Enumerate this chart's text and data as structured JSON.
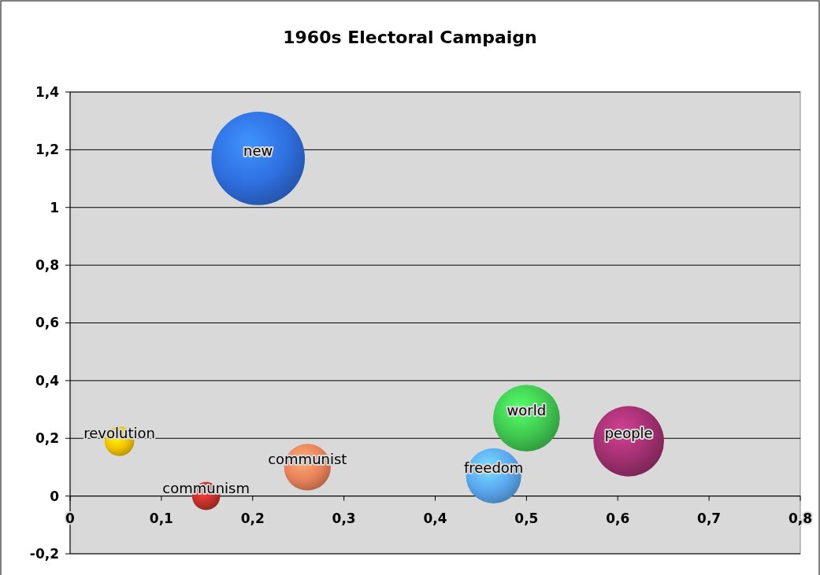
{
  "chart_data": {
    "type": "bubble",
    "title": "1960s Electoral Campaign",
    "series": [
      {
        "name": "new",
        "color": "#2f6fe0",
        "x": [
          0.206
        ],
        "values": [
          1.17
        ],
        "sizes": [
          1
        ]
      },
      {
        "name": "revolution",
        "color": "#f0c000",
        "x": [
          0.054
        ],
        "values": [
          0.19
        ],
        "sizes": [
          0.1
        ]
      },
      {
        "name": "communism",
        "color": "#c0302a",
        "x": [
          0.149
        ],
        "values": [
          0
        ],
        "sizes": [
          0.09
        ]
      },
      {
        "name": "communist",
        "color": "#e8825a",
        "x": [
          0.26
        ],
        "values": [
          0.1
        ],
        "sizes": [
          0.25
        ]
      },
      {
        "name": "freedom",
        "color": "#5aa8f0",
        "x": [
          0.464
        ],
        "values": [
          0.07
        ],
        "sizes": [
          0.35
        ]
      },
      {
        "name": "world",
        "color": "#40c850",
        "x": [
          0.5
        ],
        "values": [
          0.27
        ],
        "sizes": [
          0.51
        ]
      },
      {
        "name": "people",
        "color": "#a03070",
        "x": [
          0.612
        ],
        "values": [
          0.19
        ],
        "sizes": [
          0.57
        ]
      }
    ],
    "xlim": [
      0,
      0.8
    ],
    "xticks": [
      0,
      {
        "value": 0.1,
        "label": "0,1"
      },
      {
        "value": 0.2,
        "label": "0,2"
      },
      {
        "value": 0.3,
        "label": "0,3"
      },
      {
        "value": 0.4,
        "label": "0,4"
      },
      {
        "value": 0.5,
        "label": "0,5"
      },
      {
        "value": 0.6,
        "label": "0,6"
      },
      {
        "value": 0.7,
        "label": "0,7"
      },
      {
        "value": 0.8,
        "label": "0,8"
      }
    ],
    "ylim": [
      -0.2,
      1.4
    ],
    "yticks": [
      {
        "value": -0.2,
        "label": "-0,2"
      },
      0,
      {
        "value": 0.2,
        "label": "0,2"
      },
      {
        "value": 0.4,
        "label": "0,4"
      },
      {
        "value": 0.6,
        "label": "0,6"
      },
      {
        "value": 0.8,
        "label": "0,8"
      },
      1,
      {
        "value": 1.2,
        "label": "1,2"
      },
      {
        "value": 1.4,
        "label": "1,4"
      }
    ],
    "grid": "y"
  }
}
